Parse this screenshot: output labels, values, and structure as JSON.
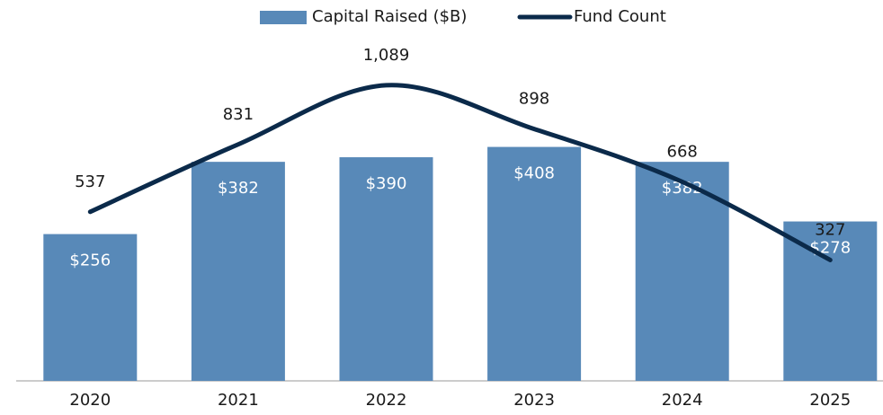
{
  "chart_data": {
    "type": "bar_line",
    "categories": [
      "2020",
      "2021",
      "2022",
      "2023",
      "2024",
      "2025"
    ],
    "series": [
      {
        "name": "Capital Raised ($B)",
        "type": "bar",
        "color": "#5889b8",
        "values": [
          256,
          382,
          390,
          408,
          382,
          278
        ],
        "value_labels": [
          "$256",
          "$382",
          "$390",
          "$408",
          "$382",
          "$278"
        ]
      },
      {
        "name": "Fund Count",
        "type": "line",
        "axis": "y2",
        "color": "#0b2a4a",
        "values": [
          537,
          831,
          1089,
          898,
          668,
          327
        ],
        "value_labels": [
          "537",
          "831",
          "1,089",
          "898",
          "668",
          "327"
        ]
      }
    ],
    "ylim": [
      0,
      600
    ],
    "y2lim": [
      -200,
      1300
    ],
    "legend": "top"
  }
}
